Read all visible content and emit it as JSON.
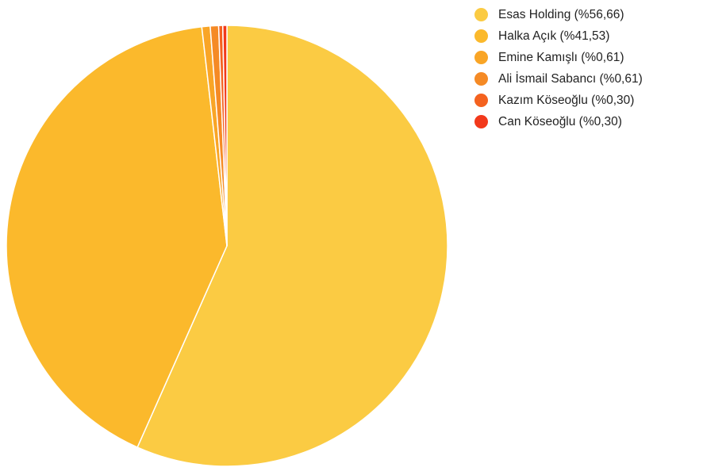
{
  "chart_data": {
    "type": "pie",
    "title": "",
    "legend_position": "right",
    "slices": [
      {
        "label": "Esas Holding (%56,66)",
        "name": "Esas Holding",
        "value": 56.66,
        "color": "#fbcb43"
      },
      {
        "label": "Halka Açık (%41,53)",
        "name": "Halka Açık",
        "value": 41.53,
        "color": "#fbb92c"
      },
      {
        "label": "Emine Kamışlı (%0,61)",
        "name": "Emine Kamışlı",
        "value": 0.61,
        "color": "#f9a526"
      },
      {
        "label": "Ali İsmail Sabancı (%0,61)",
        "name": "Ali İsmail Sabancı",
        "value": 0.61,
        "color": "#f58a25"
      },
      {
        "label": "Kazım Köseoğlu (%0,30)",
        "name": "Kazım Köseoğlu",
        "value": 0.3,
        "color": "#f4621f"
      },
      {
        "label": "Can Köseoğlu (%0,30)",
        "name": "Can Köseoğlu",
        "value": 0.3,
        "color": "#f2391b"
      }
    ]
  }
}
